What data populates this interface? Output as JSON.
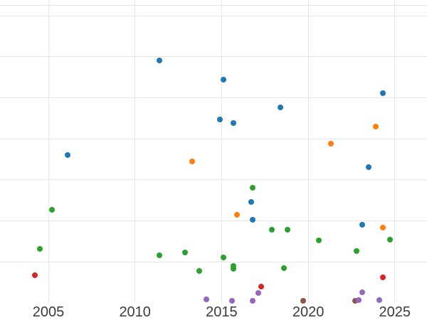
{
  "figure": {
    "background_color": "#ffffff",
    "gridline_color": "#e6e6e6",
    "tick_label_color": "#3b3b3b"
  },
  "chart_data": {
    "type": "scatter",
    "title": "",
    "xlabel": "",
    "ylabel": "",
    "legend": "none",
    "grid": "on",
    "x_axis": {
      "tick_labels": [
        "2005",
        "2010",
        "2015",
        "2020",
        "2025"
      ],
      "tick_values": [
        2005,
        2010,
        2015,
        2020,
        2025
      ],
      "approx_range_visible": [
        2002.2,
        2026.9
      ]
    },
    "y_axis": {
      "tick_labels_visible": false,
      "unit": "gridline-interval above bottom of plot (y tick labels are cropped out of view)",
      "gridline_values_u": [
        1,
        2,
        3,
        4,
        5,
        6,
        7,
        7.26
      ]
    },
    "series": [
      {
        "name": "blue",
        "color": "#1f77b4",
        "points": [
          {
            "x": 2006.1,
            "y": 3.61
          },
          {
            "x": 2011.4,
            "y": 5.91
          },
          {
            "x": 2014.9,
            "y": 4.47
          },
          {
            "x": 2015.1,
            "y": 5.44
          },
          {
            "x": 2015.7,
            "y": 4.39
          },
          {
            "x": 2016.7,
            "y": 2.45
          },
          {
            "x": 2016.8,
            "y": 2.02
          },
          {
            "x": 2018.4,
            "y": 4.77
          },
          {
            "x": 2023.1,
            "y": 1.9
          },
          {
            "x": 2023.5,
            "y": 3.3
          },
          {
            "x": 2024.3,
            "y": 5.11
          }
        ]
      },
      {
        "name": "orange",
        "color": "#ff7f0e",
        "points": [
          {
            "x": 2013.3,
            "y": 3.44
          },
          {
            "x": 2015.9,
            "y": 2.14
          },
          {
            "x": 2021.3,
            "y": 3.88
          },
          {
            "x": 2023.9,
            "y": 4.3
          },
          {
            "x": 2024.3,
            "y": 1.84
          }
        ]
      },
      {
        "name": "green",
        "color": "#2ca02c",
        "points": [
          {
            "x": 2004.5,
            "y": 1.31
          },
          {
            "x": 2005.2,
            "y": 2.27
          },
          {
            "x": 2011.4,
            "y": 1.15
          },
          {
            "x": 2012.9,
            "y": 1.23
          },
          {
            "x": 2013.7,
            "y": 0.77
          },
          {
            "x": 2015.1,
            "y": 1.1
          },
          {
            "x": 2015.7,
            "y": 0.9
          },
          {
            "x": 2015.7,
            "y": 0.82
          },
          {
            "x": 2016.8,
            "y": 2.8
          },
          {
            "x": 2017.9,
            "y": 1.79
          },
          {
            "x": 2018.6,
            "y": 0.84
          },
          {
            "x": 2018.8,
            "y": 1.79
          },
          {
            "x": 2020.6,
            "y": 1.52
          },
          {
            "x": 2022.8,
            "y": 1.27
          },
          {
            "x": 2024.7,
            "y": 1.54
          }
        ]
      },
      {
        "name": "red",
        "color": "#d62728",
        "points": [
          {
            "x": 2004.2,
            "y": 0.68
          },
          {
            "x": 2017.3,
            "y": 0.39
          },
          {
            "x": 2024.3,
            "y": 0.62
          }
        ]
      },
      {
        "name": "brown",
        "color": "#8c564b",
        "points": [
          {
            "x": 2019.7,
            "y": 0.04
          },
          {
            "x": 2022.7,
            "y": 0.05
          }
        ]
      },
      {
        "name": "purple",
        "color": "#9467bd",
        "points": [
          {
            "x": 2014.1,
            "y": 0.08
          },
          {
            "x": 2015.6,
            "y": 0.04
          },
          {
            "x": 2016.8,
            "y": 0.05
          },
          {
            "x": 2017.1,
            "y": 0.23
          },
          {
            "x": 2022.9,
            "y": 0.06
          },
          {
            "x": 2023.1,
            "y": 0.25
          },
          {
            "x": 2024.1,
            "y": 0.06
          }
        ]
      }
    ]
  }
}
